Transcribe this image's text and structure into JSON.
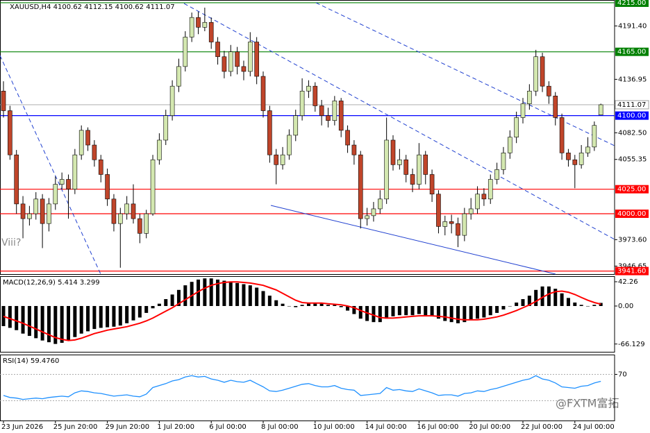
{
  "chart_data": [
    {
      "type": "candlestick",
      "title": "XAUUSD,H4  4100.62 4112.15 4100.62 4111.07",
      "annotation": "Viii?",
      "watermark": "@FXTM富拓",
      "categories": [
        "23 Jun 2026",
        null,
        null,
        null,
        null,
        null,
        null,
        null,
        "25 Jun 20:00",
        null,
        null,
        null,
        null,
        null,
        null,
        null,
        "29 Jun 20:00",
        null,
        null,
        null,
        null,
        null,
        null,
        null,
        "1 Jul 20:00",
        null,
        null,
        null,
        null,
        null,
        null,
        null,
        "6 Jul 00:00",
        null,
        null,
        null,
        null,
        null,
        null,
        null,
        "8 Jul 00:00",
        null,
        null,
        null,
        null,
        null,
        null,
        null,
        "10 Jul 00:00",
        null,
        null,
        null,
        null,
        null,
        null,
        null,
        "14 Jul 00:00",
        null,
        null,
        null,
        null,
        null,
        null,
        null,
        "16 Jul 00:00",
        null,
        null,
        null,
        null,
        null,
        null,
        null,
        "20 Jul 00:00",
        null,
        null,
        null,
        null,
        null,
        null,
        null,
        "22 Jul 00:00",
        null,
        null,
        null,
        null,
        null,
        null,
        null,
        "24 Jul 00:00",
        null,
        null,
        null,
        null
      ],
      "open": [
        4125,
        4105,
        4060,
        4010,
        3995,
        4000,
        4015,
        3990,
        4010,
        4030,
        4035,
        4025,
        4060,
        4085,
        4070,
        4055,
        4040,
        4015,
        3990,
        4000,
        4010,
        3995,
        3980,
        4000,
        4055,
        4075,
        4100,
        4130,
        4150,
        4180,
        4200,
        4190,
        4195,
        4175,
        4160,
        4145,
        4165,
        4150,
        4145,
        4175,
        4140,
        4105,
        4060,
        4050,
        4060,
        4080,
        4100,
        4125,
        4130,
        4110,
        4100,
        4095,
        4115,
        4085,
        4070,
        4060,
        3995,
        3998,
        4005,
        4015,
        4075,
        4050,
        4055,
        4040,
        4030,
        4060,
        4040,
        4020,
        3987,
        3992,
        3990,
        3978,
        4000,
        4005,
        4020,
        4015,
        4035,
        4045,
        4062,
        4078,
        4098,
        4112,
        4125,
        4160,
        4130,
        4120,
        4098,
        4062,
        4055,
        4050,
        4062,
        4068,
        4100.62
      ],
      "high": [
        4135,
        4110,
        4065,
        4018,
        4008,
        4022,
        4020,
        4016,
        4038,
        4042,
        4040,
        4066,
        4090,
        4088,
        4075,
        4060,
        4046,
        4020,
        4006,
        4018,
        4030,
        4000,
        4004,
        4060,
        4082,
        4106,
        4136,
        4158,
        4186,
        4205,
        4206,
        4210,
        4200,
        4180,
        4166,
        4172,
        4170,
        4156,
        4185,
        4180,
        4145,
        4110,
        4066,
        4068,
        4086,
        4106,
        4138,
        4136,
        4134,
        4116,
        4108,
        4120,
        4118,
        4090,
        4075,
        4064,
        4006,
        4012,
        4024,
        4098,
        4080,
        4066,
        4060,
        4046,
        4072,
        4064,
        4045,
        4024,
        3998,
        3999,
        3996,
        4006,
        4016,
        4028,
        4026,
        4040,
        4052,
        4068,
        4085,
        4104,
        4118,
        4132,
        4167,
        4164,
        4135,
        4124,
        4102,
        4066,
        4060,
        4070,
        4078,
        4094,
        4112.15
      ],
      "low": [
        4098,
        4055,
        4000,
        3975,
        3988,
        3994,
        3965,
        3982,
        4004,
        4025,
        3995,
        4020,
        4055,
        4064,
        4048,
        4032,
        4008,
        3982,
        3945,
        3994,
        3990,
        3970,
        3975,
        3998,
        4050,
        4070,
        4095,
        4124,
        4145,
        4175,
        4183,
        4186,
        4168,
        4152,
        4138,
        4140,
        4142,
        4136,
        4140,
        4132,
        4098,
        4052,
        4030,
        4045,
        4055,
        4074,
        4095,
        4118,
        4104,
        4090,
        4088,
        4090,
        4078,
        4062,
        4050,
        3985,
        3988,
        3992,
        4000,
        4010,
        4044,
        4045,
        4032,
        4022,
        4025,
        4030,
        4012,
        3980,
        3978,
        3980,
        3966,
        3972,
        3994,
        4000,
        4008,
        4010,
        4030,
        4040,
        4056,
        4072,
        4092,
        4106,
        4120,
        4124,
        4112,
        4090,
        4055,
        4048,
        4026,
        4046,
        4058,
        4064,
        4100.62
      ],
      "close": [
        4105,
        4060,
        4010,
        3995,
        4000,
        4015,
        3990,
        4010,
        4030,
        4035,
        4025,
        4060,
        4085,
        4070,
        4055,
        4040,
        4015,
        3990,
        4000,
        4010,
        3995,
        3980,
        4000,
        4055,
        4075,
        4100,
        4130,
        4150,
        4180,
        4200,
        4190,
        4195,
        4175,
        4160,
        4145,
        4165,
        4150,
        4145,
        4175,
        4140,
        4105,
        4060,
        4050,
        4060,
        4080,
        4100,
        4125,
        4130,
        4110,
        4100,
        4095,
        4115,
        4085,
        4070,
        4060,
        3995,
        3998,
        4005,
        4015,
        4075,
        4050,
        4055,
        4040,
        4030,
        4060,
        4040,
        4020,
        3987,
        3992,
        3990,
        3978,
        4000,
        4005,
        4020,
        4015,
        4035,
        4045,
        4062,
        4078,
        4098,
        4112,
        4125,
        4160,
        4130,
        4120,
        4098,
        4062,
        4055,
        4050,
        4062,
        4068,
        4090,
        4111.07
      ],
      "up_color": "#d4e8b0",
      "down_color": "#c0452a",
      "ylim": [
        3938.5,
        4217.8
      ],
      "yticks": [
        {
          "value": 4191.4,
          "label": "4191.40"
        },
        {
          "value": 4136.95,
          "label": "4136.95"
        },
        {
          "value": 4082.5,
          "label": "4082.50"
        },
        {
          "value": 4055.35,
          "label": "4055.35"
        },
        {
          "value": 3973.6,
          "label": "3973.60"
        },
        {
          "value": 3946.65,
          "label": "3946.65"
        }
      ],
      "levels": [
        {
          "value": 4215,
          "label": "4215.00",
          "color": "#008000"
        },
        {
          "value": 4165,
          "label": "4165.00",
          "color": "#008000"
        },
        {
          "value": 4100,
          "label": "4100.00",
          "color": "#0000ff"
        },
        {
          "value": 4025,
          "label": "4025.00",
          "color": "#ff0000"
        },
        {
          "value": 4000,
          "label": "4000.00",
          "color": "#ff0000"
        },
        {
          "value": 3941.6,
          "label": "3941.60",
          "color": "#ff0000"
        }
      ],
      "last_price": {
        "value": 4111.07,
        "label": "4111.07",
        "color": "#a0a0a0"
      }
    },
    {
      "type": "macd",
      "title": "MACD(12,26,9) 5.414 3.299",
      "histogram": {
        "color": "#000000",
        "values": [
          -35,
          -38,
          -42,
          -48,
          -52,
          -56,
          -60,
          -63,
          -66,
          -64,
          -60,
          -54,
          -48,
          -44,
          -40,
          -38,
          -37,
          -36,
          -34,
          -30,
          -25,
          -20,
          -12,
          -4,
          4,
          12,
          20,
          28,
          36,
          42,
          46,
          48,
          48,
          46,
          44,
          42,
          40,
          38,
          36,
          32,
          26,
          18,
          10,
          4,
          0,
          -2,
          2,
          6,
          6,
          4,
          2,
          2,
          -2,
          -8,
          -14,
          -22,
          -26,
          -28,
          -28,
          -22,
          -18,
          -16,
          -16,
          -16,
          -14,
          -16,
          -18,
          -22,
          -26,
          -28,
          -30,
          -28,
          -24,
          -22,
          -20,
          -16,
          -12,
          -6,
          0,
          6,
          12,
          18,
          28,
          34,
          34,
          30,
          22,
          14,
          6,
          2,
          0,
          2,
          5.414
        ]
      },
      "signal": {
        "color": "#ff0000",
        "values": [
          -18,
          -22,
          -26,
          -30,
          -35,
          -40,
          -45,
          -50,
          -55,
          -58,
          -60,
          -59,
          -56,
          -52,
          -48,
          -45,
          -42,
          -40,
          -38,
          -36,
          -33,
          -30,
          -26,
          -21,
          -15,
          -9,
          -3,
          4,
          11,
          18,
          25,
          31,
          36,
          39,
          41,
          42,
          42,
          41,
          40,
          38,
          36,
          32,
          28,
          22,
          16,
          10,
          6,
          5,
          5,
          5,
          4,
          3,
          2,
          0,
          -3,
          -8,
          -12,
          -16,
          -20,
          -21,
          -21,
          -20,
          -19,
          -18,
          -17,
          -17,
          -17,
          -18,
          -19,
          -21,
          -23,
          -24,
          -24,
          -24,
          -23,
          -21,
          -19,
          -16,
          -12,
          -8,
          -3,
          2,
          8,
          15,
          21,
          25,
          26,
          24,
          20,
          15,
          10,
          6,
          3.299
        ]
      },
      "ylim": [
        -79.7,
        51.9
      ],
      "yticks": [
        {
          "value": 42.26,
          "label": "42.26"
        },
        {
          "value": 0,
          "label": "0.00"
        },
        {
          "value": -66.129,
          "label": "-66.129"
        }
      ]
    },
    {
      "type": "rsi",
      "title": "RSI(14) 59.4760",
      "color": "#1e90ff",
      "values": [
        38,
        35,
        34,
        32,
        33,
        34,
        33,
        35,
        36,
        37,
        36,
        42,
        45,
        44,
        42,
        41,
        39,
        37,
        38,
        39,
        37,
        36,
        40,
        50,
        53,
        56,
        60,
        62,
        66,
        68,
        66,
        67,
        63,
        61,
        58,
        61,
        59,
        58,
        61,
        56,
        51,
        45,
        44,
        46,
        49,
        52,
        55,
        56,
        53,
        51,
        51,
        53,
        49,
        47,
        46,
        38,
        39,
        40,
        41,
        50,
        46,
        47,
        45,
        44,
        48,
        45,
        42,
        38,
        39,
        39,
        37,
        41,
        42,
        45,
        44,
        47,
        49,
        52,
        55,
        58,
        61,
        63,
        68,
        63,
        61,
        57,
        51,
        50,
        49,
        52,
        53,
        57,
        59.476
      ],
      "ylim": [
        0,
        100
      ],
      "yticks": [
        70
      ],
      "levels": [
        70,
        30
      ]
    }
  ]
}
